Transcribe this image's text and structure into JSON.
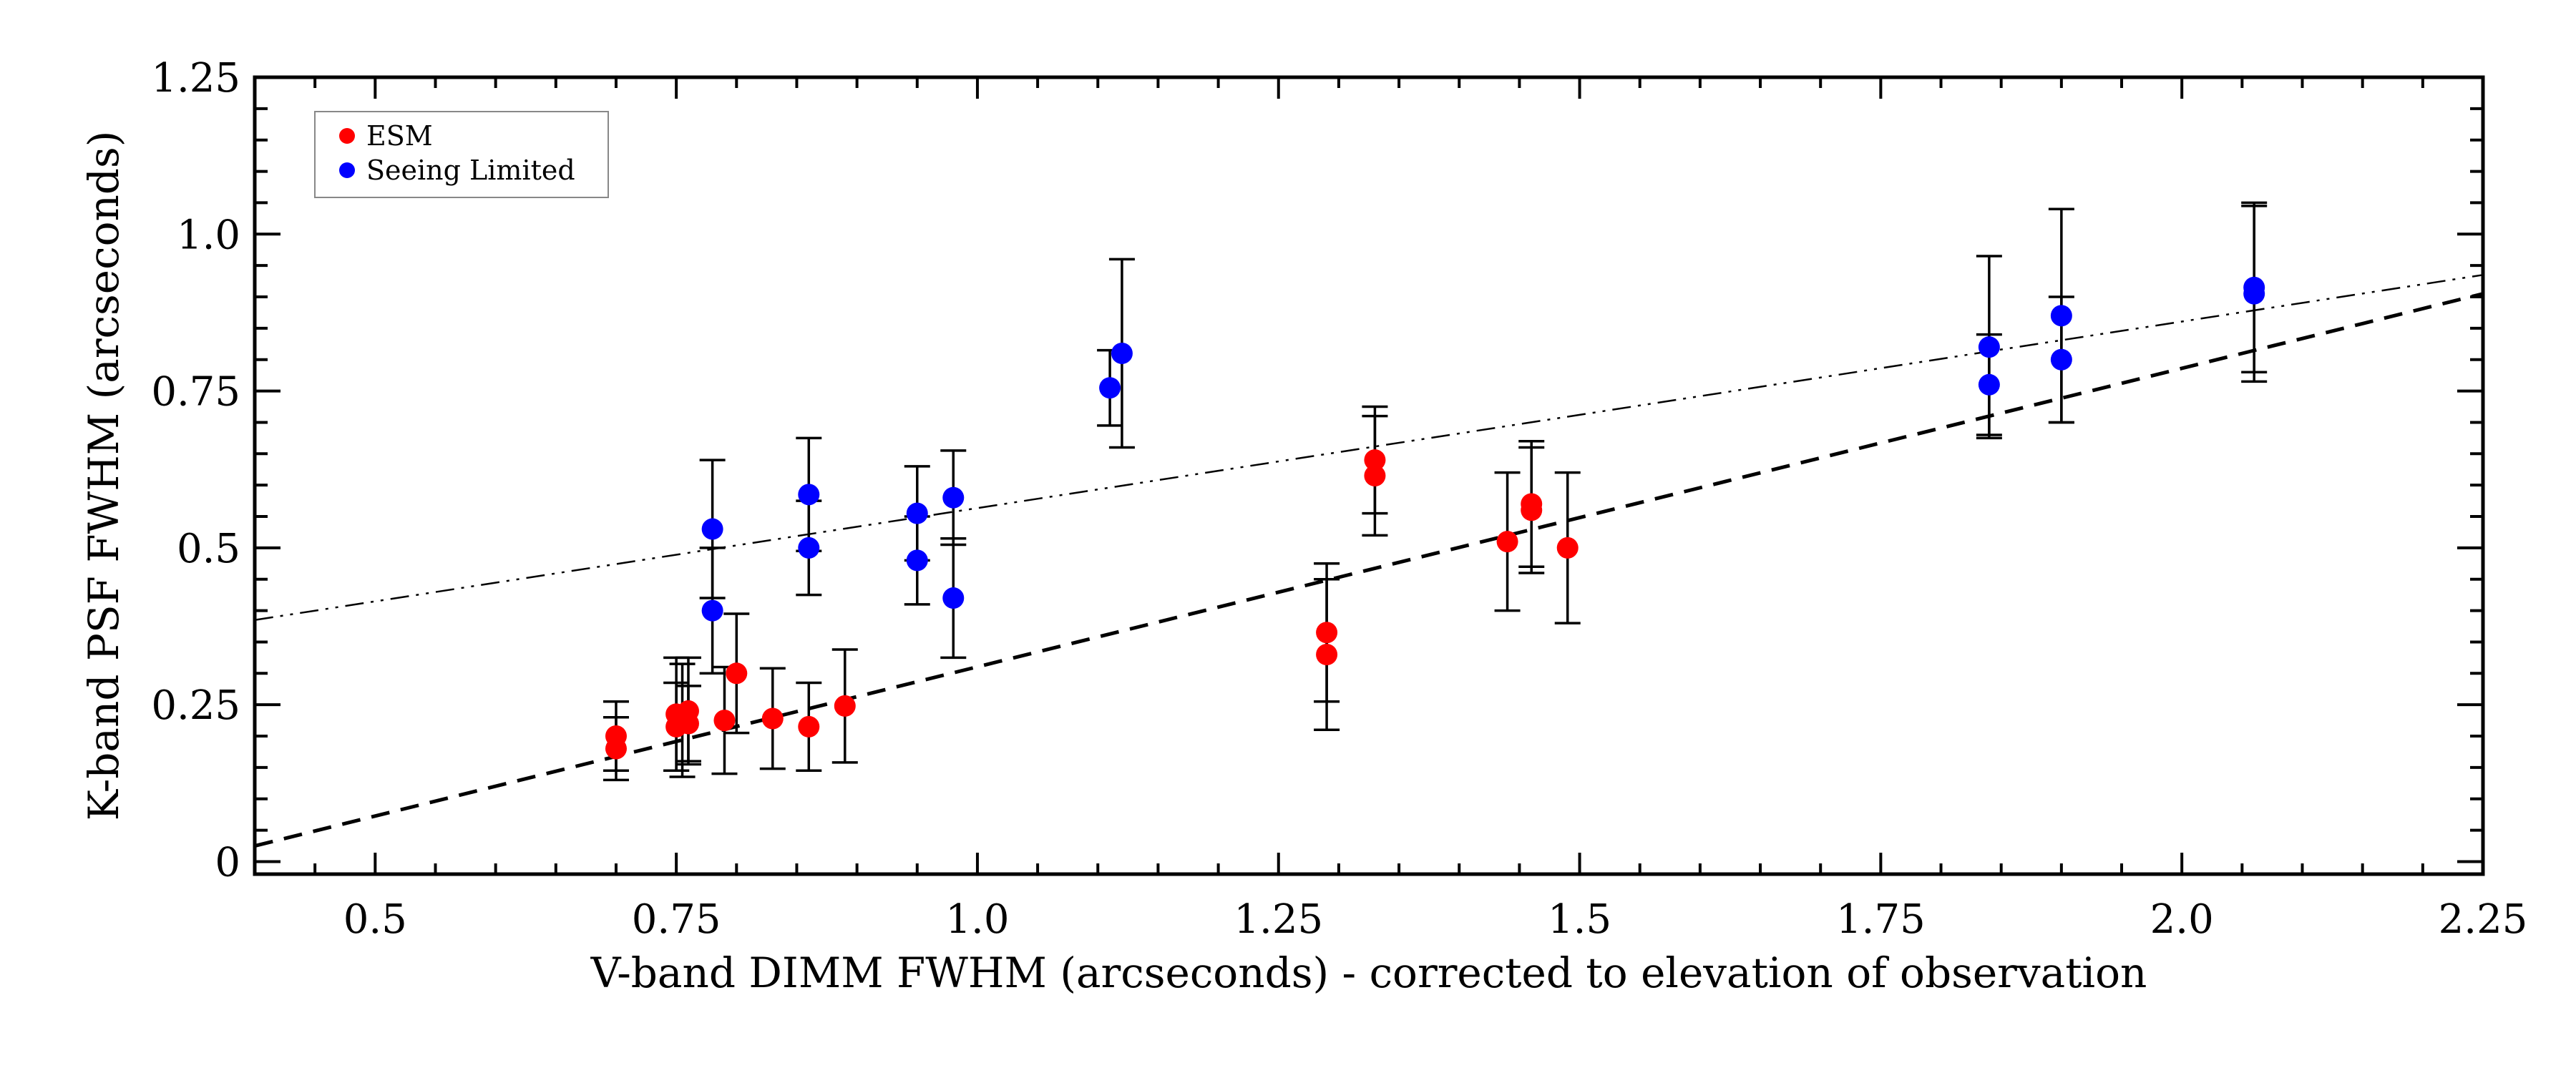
{
  "chart_data": {
    "type": "scatter",
    "xlabel": "V-band DIMM FWHM (arcseconds) - corrected to elevation of observation",
    "ylabel": "K-band PSF FWHM (arcseconds)",
    "xlim": [
      0.4,
      2.25
    ],
    "ylim": [
      -0.02,
      1.25
    ],
    "x_ticks": [
      {
        "value": 0.5,
        "label": "0.5"
      },
      {
        "value": 0.75,
        "label": "0.75"
      },
      {
        "value": 1.0,
        "label": "1.0"
      },
      {
        "value": 1.25,
        "label": "1.25"
      },
      {
        "value": 1.5,
        "label": "1.5"
      },
      {
        "value": 1.75,
        "label": "1.75"
      },
      {
        "value": 2.0,
        "label": "2.0"
      },
      {
        "value": 2.25,
        "label": "2.25"
      }
    ],
    "y_ticks": [
      {
        "value": 0,
        "label": "0"
      },
      {
        "value": 0.25,
        "label": "0.25"
      },
      {
        "value": 0.5,
        "label": "0.5"
      },
      {
        "value": 0.75,
        "label": "0.75"
      },
      {
        "value": 1.0,
        "label": "1.0"
      },
      {
        "value": 1.25,
        "label": "1.25"
      }
    ],
    "legend_position": "top-left",
    "grid": false,
    "series": [
      {
        "name": "ESM",
        "color": "#ff0000",
        "points": [
          {
            "x": 0.7,
            "y": 0.2,
            "err": 0.055
          },
          {
            "x": 0.7,
            "y": 0.18,
            "err": 0.05
          },
          {
            "x": 0.75,
            "y": 0.235,
            "err": 0.09
          },
          {
            "x": 0.75,
            "y": 0.215,
            "err": 0.07
          },
          {
            "x": 0.755,
            "y": 0.225,
            "err": 0.09
          },
          {
            "x": 0.76,
            "y": 0.24,
            "err": 0.085
          },
          {
            "x": 0.76,
            "y": 0.22,
            "err": 0.06
          },
          {
            "x": 0.79,
            "y": 0.225,
            "err": 0.085
          },
          {
            "x": 0.8,
            "y": 0.3,
            "err": 0.095
          },
          {
            "x": 0.83,
            "y": 0.228,
            "err": 0.08
          },
          {
            "x": 0.86,
            "y": 0.215,
            "err": 0.07
          },
          {
            "x": 0.89,
            "y": 0.248,
            "err": 0.09
          },
          {
            "x": 1.29,
            "y": 0.365,
            "err": 0.11
          },
          {
            "x": 1.29,
            "y": 0.33,
            "err": 0.12
          },
          {
            "x": 1.33,
            "y": 0.64,
            "err": 0.085
          },
          {
            "x": 1.33,
            "y": 0.615,
            "err": 0.095
          },
          {
            "x": 1.44,
            "y": 0.51,
            "err": 0.11
          },
          {
            "x": 1.46,
            "y": 0.57,
            "err": 0.1
          },
          {
            "x": 1.46,
            "y": 0.56,
            "err": 0.1
          },
          {
            "x": 1.49,
            "y": 0.5,
            "err": 0.12
          }
        ]
      },
      {
        "name": "Seeing Limited",
        "color": "#0000ff",
        "points": [
          {
            "x": 0.78,
            "y": 0.53,
            "err": 0.11
          },
          {
            "x": 0.78,
            "y": 0.4,
            "err": 0.1
          },
          {
            "x": 0.86,
            "y": 0.585,
            "err": 0.09
          },
          {
            "x": 0.86,
            "y": 0.5,
            "err": 0.075
          },
          {
            "x": 0.95,
            "y": 0.555,
            "err": 0.075
          },
          {
            "x": 0.95,
            "y": 0.48,
            "err": 0.07
          },
          {
            "x": 0.98,
            "y": 0.58,
            "err": 0.075
          },
          {
            "x": 0.98,
            "y": 0.42,
            "err": 0.095
          },
          {
            "x": 1.11,
            "y": 0.755,
            "err": 0.06
          },
          {
            "x": 1.12,
            "y": 0.81,
            "err": 0.15
          },
          {
            "x": 1.84,
            "y": 0.82,
            "err": 0.145
          },
          {
            "x": 1.84,
            "y": 0.76,
            "err": 0.08
          },
          {
            "x": 1.9,
            "y": 0.87,
            "err": 0.17
          },
          {
            "x": 1.9,
            "y": 0.8,
            "err": 0.1
          },
          {
            "x": 2.06,
            "y": 0.915,
            "err": 0.135
          },
          {
            "x": 2.06,
            "y": 0.905,
            "err": 0.14
          }
        ]
      }
    ],
    "lines": [
      {
        "style": "dashed",
        "x": [
          0.4,
          2.25
        ],
        "y": [
          0.025,
          0.905
        ]
      },
      {
        "style": "dash-dot-dot",
        "x": [
          0.4,
          2.25
        ],
        "y": [
          0.385,
          0.935
        ]
      }
    ]
  }
}
